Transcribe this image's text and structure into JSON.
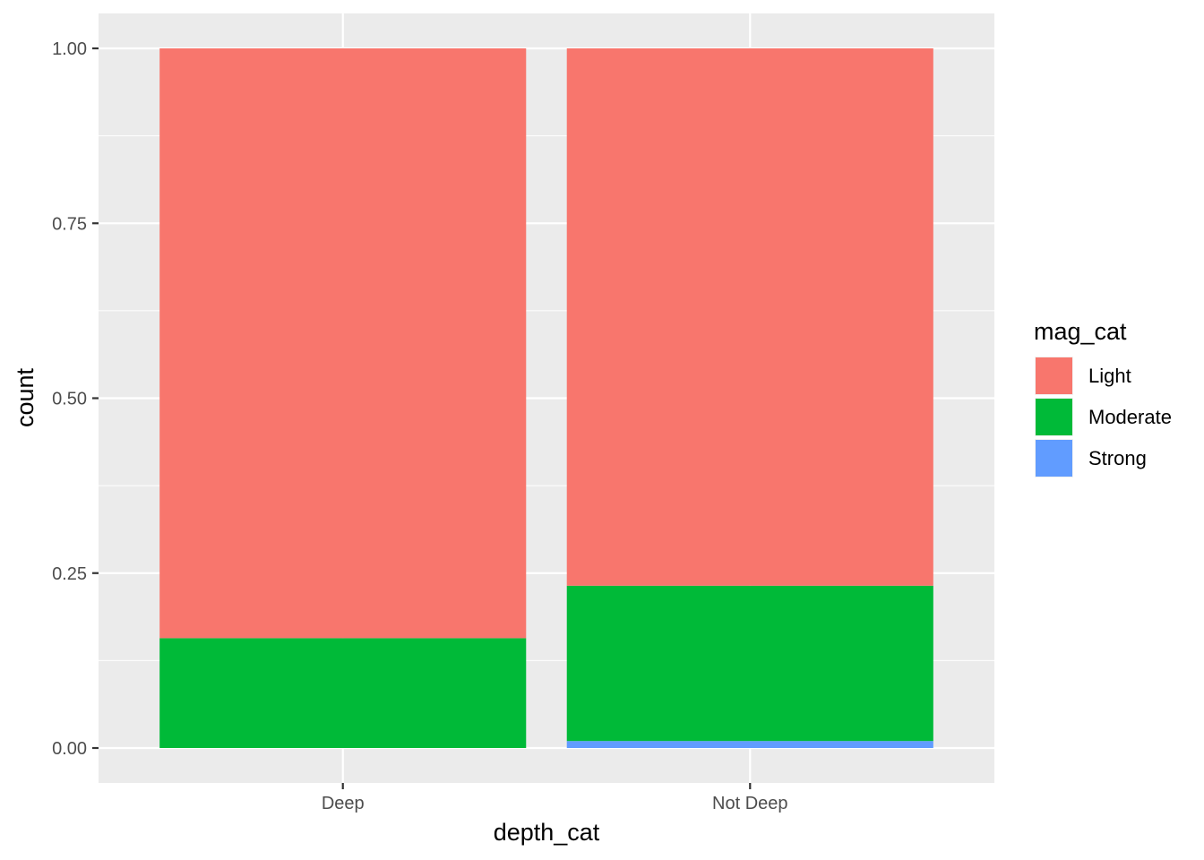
{
  "chart_data": {
    "type": "bar",
    "stacked": true,
    "categories": [
      "Deep",
      "Not Deep"
    ],
    "series": [
      {
        "name": "Light",
        "color": "#F8766D",
        "values": [
          0.843,
          0.768
        ]
      },
      {
        "name": "Moderate",
        "color": "#00BA38",
        "values": [
          0.157,
          0.222
        ]
      },
      {
        "name": "Strong",
        "color": "#619CFF",
        "values": [
          0.0,
          0.01
        ]
      }
    ],
    "stack_order": [
      "Strong",
      "Moderate",
      "Light"
    ],
    "xlabel": "depth_cat",
    "ylabel": "count",
    "ylim": [
      0,
      1.0
    ],
    "yticks": [
      0.0,
      0.25,
      0.5,
      0.75,
      1.0
    ],
    "ytick_labels": [
      "0.00",
      "0.25",
      "0.50",
      "0.75",
      "1.00"
    ],
    "legend": {
      "title": "mag_cat",
      "position": "right"
    },
    "grid": true,
    "panel_background": "#EBEBEB",
    "grid_color": "#FFFFFF"
  }
}
